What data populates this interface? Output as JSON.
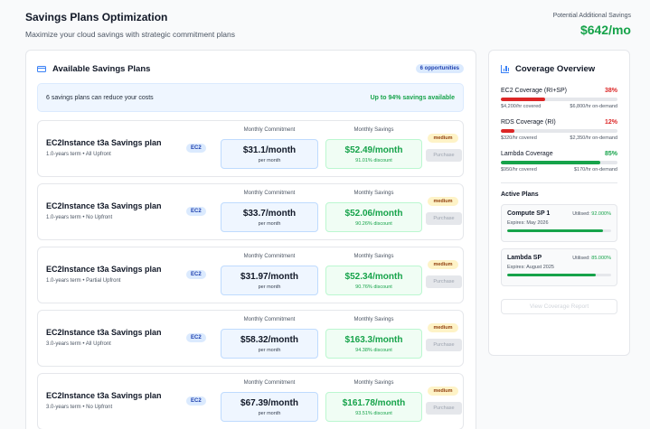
{
  "header": {
    "title": "Savings Plans Optimization",
    "subtitle": "Maximize your cloud savings with strategic commitment plans",
    "potential_label": "Potential Additional Savings",
    "potential_value": "$642/mo"
  },
  "colors": {
    "accent": "#3b82f6",
    "savings": "#16a34a",
    "warning": "#dc2626",
    "badge": "#fef3c7"
  },
  "available": {
    "title": "Available Savings Plans",
    "opportunities": "6 opportunities",
    "banner_text": "6 savings plans can reduce your costs",
    "banner_right": "Up to 94% savings available",
    "commit_label": "Monthly Commitment",
    "savings_label": "Monthly Savings",
    "per_month": "per month",
    "purchase_label": "Purchase",
    "plans": [
      {
        "name": "EC2Instance t3a Savings plan",
        "term": "1.0-years term • All Upfront",
        "type": "EC2",
        "commitment": "$31.1/month",
        "savings": "$52.49/month",
        "discount": "91.01% discount",
        "priority": "medium"
      },
      {
        "name": "EC2Instance t3a Savings plan",
        "term": "1.0-years term • No Upfront",
        "type": "EC2",
        "commitment": "$33.7/month",
        "savings": "$52.06/month",
        "discount": "90.26% discount",
        "priority": "medium"
      },
      {
        "name": "EC2Instance t3a Savings plan",
        "term": "1.0-years term • Partial Upfront",
        "type": "EC2",
        "commitment": "$31.97/month",
        "savings": "$52.34/month",
        "discount": "90.76% discount",
        "priority": "medium"
      },
      {
        "name": "EC2Instance t3a Savings plan",
        "term": "3.0-years term • All Upfront",
        "type": "EC2",
        "commitment": "$58.32/month",
        "savings": "$163.3/month",
        "discount": "94.38% discount",
        "priority": "medium"
      },
      {
        "name": "EC2Instance t3a Savings plan",
        "term": "3.0-years term • No Upfront",
        "type": "EC2",
        "commitment": "$67.39/month",
        "savings": "$161.78/month",
        "discount": "93.51% discount",
        "priority": "medium"
      }
    ]
  },
  "coverage": {
    "title": "Coverage Overview",
    "items": [
      {
        "label": "EC2 Coverage (RI+SP)",
        "pct": "38%",
        "fraction": 0.38,
        "color": "#dc2626",
        "covered": "$4,200/hr covered",
        "ondemand": "$6,800/hr on-demand"
      },
      {
        "label": "RDS Coverage (RI)",
        "pct": "12%",
        "fraction": 0.12,
        "color": "#dc2626",
        "covered": "$320/hr covered",
        "ondemand": "$2,350/hr on-demand"
      },
      {
        "label": "Lambda Coverage",
        "pct": "85%",
        "fraction": 0.85,
        "color": "#16a34a",
        "covered": "$950/hr covered",
        "ondemand": "$170/hr on-demand"
      }
    ],
    "active_title": "Active Plans",
    "utilised_label": "Utilised:",
    "active_plans": [
      {
        "name": "Compute SP 1",
        "utilised": "92.000%",
        "fraction": 0.92,
        "expires": "Expires: May 2026"
      },
      {
        "name": "Lambda SP",
        "utilised": "85.000%",
        "fraction": 0.85,
        "expires": "Expires: August 2025"
      }
    ],
    "view_report": "View Coverage Report"
  }
}
